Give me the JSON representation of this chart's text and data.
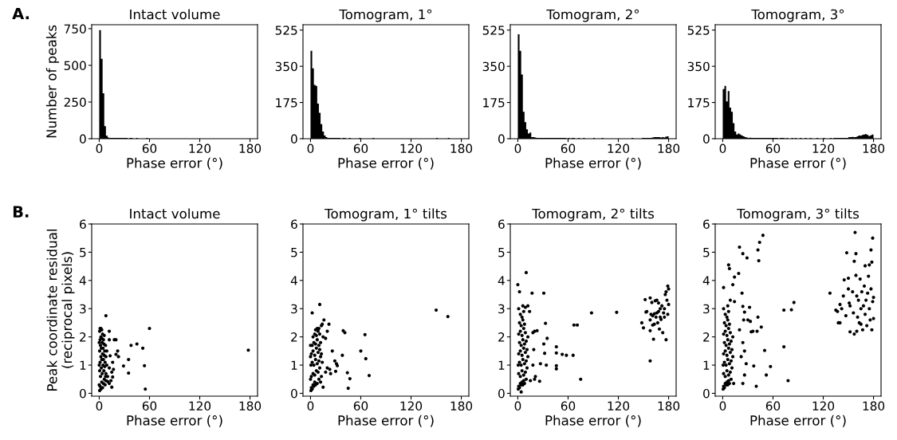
{
  "chart_data": [
    {
      "type": "histogram",
      "title": "Intact volume",
      "xlabel": "Phase error (°)",
      "ylabel": "Number of peaks",
      "annotations": [
        "A."
      ],
      "color": "#000000",
      "bins": [
        0,
        2,
        4,
        6,
        8,
        10,
        12,
        14,
        16,
        18,
        20,
        22,
        24,
        26,
        28,
        30,
        32,
        34,
        36,
        38,
        40,
        42,
        44,
        46,
        48,
        50,
        52,
        54,
        56,
        58,
        60,
        62,
        64,
        66,
        68,
        70,
        72,
        74,
        76,
        78,
        80,
        82,
        84,
        86,
        88,
        90,
        92,
        94,
        96,
        98,
        100,
        102,
        104,
        106,
        108,
        110,
        112,
        114,
        116,
        118,
        120,
        122,
        124,
        126,
        128,
        130,
        132,
        134,
        136,
        138,
        140,
        142,
        144,
        146,
        148,
        150,
        152,
        154,
        156,
        158,
        160,
        162,
        164,
        166,
        168,
        170,
        172,
        174,
        176,
        178,
        180
      ],
      "values": [
        740,
        545,
        310,
        85,
        20,
        8,
        6,
        6,
        6,
        6,
        6,
        6,
        6,
        6,
        6,
        6,
        6,
        0,
        6,
        6,
        0,
        0,
        6,
        0,
        0,
        0,
        0,
        0,
        6,
        0,
        0,
        0,
        0,
        0,
        0,
        0,
        0,
        0,
        0,
        0,
        0,
        0,
        0,
        0,
        0,
        0,
        0,
        0,
        0,
        0,
        0,
        0,
        0,
        0,
        0,
        0,
        0,
        0,
        0,
        0,
        0,
        0,
        0,
        0,
        0,
        0,
        0,
        0,
        0,
        0,
        0,
        0,
        0,
        0,
        0,
        0,
        0,
        0,
        0,
        0,
        0,
        0,
        0,
        0,
        0,
        0,
        0,
        0,
        0,
        0
      ],
      "xlim": [
        -9,
        189
      ],
      "xticks": [
        0,
        60,
        120,
        180
      ],
      "ylim": [
        0,
        777
      ],
      "yticks": [
        0,
        250,
        500,
        750
      ]
    },
    {
      "type": "histogram",
      "title": "Tomogram, 1°",
      "xlabel": "Phase error (°)",
      "color": "#000000",
      "bins": [
        0,
        2,
        4,
        6,
        8,
        10,
        12,
        14,
        16,
        18,
        20,
        22,
        24,
        26,
        28,
        30,
        32,
        34,
        36,
        38,
        40,
        42,
        44,
        46,
        48,
        50,
        52,
        54,
        56,
        58,
        60,
        62,
        64,
        66,
        68,
        70,
        72,
        74,
        76,
        78,
        80,
        82,
        84,
        86,
        88,
        90,
        92,
        94,
        96,
        98,
        100,
        102,
        104,
        106,
        108,
        110,
        112,
        114,
        116,
        118,
        120,
        122,
        124,
        126,
        128,
        130,
        132,
        134,
        136,
        138,
        140,
        142,
        144,
        146,
        148,
        150,
        152,
        154,
        156,
        158,
        160,
        162,
        164,
        166,
        168,
        170,
        172,
        174,
        176,
        178,
        180
      ],
      "values": [
        425,
        340,
        260,
        255,
        170,
        125,
        70,
        35,
        15,
        8,
        4,
        4,
        4,
        4,
        4,
        4,
        4,
        4,
        0,
        4,
        4,
        0,
        0,
        4,
        0,
        0,
        0,
        0,
        0,
        4,
        0,
        0,
        0,
        0,
        0,
        0,
        0,
        4,
        0,
        0,
        0,
        0,
        0,
        0,
        0,
        0,
        0,
        0,
        0,
        0,
        0,
        0,
        0,
        0,
        0,
        0,
        0,
        0,
        0,
        0,
        0,
        0,
        0,
        0,
        0,
        0,
        0,
        0,
        0,
        0,
        0,
        0,
        0,
        0,
        0,
        4,
        0,
        0,
        0,
        0,
        0,
        0,
        4,
        0,
        0,
        0,
        0,
        0,
        0,
        0
      ],
      "xlim": [
        -9,
        189
      ],
      "xticks": [
        0,
        60,
        120,
        180
      ],
      "ylim": [
        0,
        551
      ],
      "yticks": [
        0,
        175,
        350,
        525
      ]
    },
    {
      "type": "histogram",
      "title": "Tomogram, 2°",
      "xlabel": "Phase error (°)",
      "color": "#000000",
      "bins": [
        0,
        2,
        4,
        6,
        8,
        10,
        12,
        14,
        16,
        18,
        20,
        22,
        24,
        26,
        28,
        30,
        32,
        34,
        36,
        38,
        40,
        42,
        44,
        46,
        48,
        50,
        52,
        54,
        56,
        58,
        60,
        62,
        64,
        66,
        68,
        70,
        72,
        74,
        76,
        78,
        80,
        82,
        84,
        86,
        88,
        90,
        92,
        94,
        96,
        98,
        100,
        102,
        104,
        106,
        108,
        110,
        112,
        114,
        116,
        118,
        120,
        122,
        124,
        126,
        128,
        130,
        132,
        134,
        136,
        138,
        140,
        142,
        144,
        146,
        148,
        150,
        152,
        154,
        156,
        158,
        160,
        162,
        164,
        166,
        168,
        170,
        172,
        174,
        176,
        178,
        180
      ],
      "values": [
        505,
        425,
        310,
        130,
        80,
        45,
        25,
        30,
        8,
        8,
        6,
        4,
        4,
        4,
        4,
        4,
        4,
        4,
        4,
        4,
        4,
        4,
        4,
        4,
        4,
        4,
        4,
        4,
        4,
        0,
        4,
        0,
        4,
        4,
        0,
        0,
        4,
        0,
        0,
        4,
        0,
        0,
        0,
        0,
        0,
        4,
        0,
        0,
        0,
        0,
        4,
        0,
        0,
        0,
        0,
        0,
        0,
        0,
        0,
        0,
        0,
        0,
        0,
        0,
        0,
        0,
        0,
        0,
        4,
        0,
        0,
        0,
        0,
        0,
        4,
        4,
        4,
        4,
        4,
        4,
        6,
        8,
        8,
        8,
        8,
        6,
        8,
        6,
        10,
        12
      ],
      "xlim": [
        -9,
        189
      ],
      "xticks": [
        0,
        60,
        120,
        180
      ],
      "ylim": [
        0,
        551
      ],
      "yticks": [
        0,
        175,
        350,
        525
      ]
    },
    {
      "type": "histogram",
      "title": "Tomogram, 3°",
      "xlabel": "Phase error (°)",
      "color": "#000000",
      "bins": [
        0,
        2,
        4,
        6,
        8,
        10,
        12,
        14,
        16,
        18,
        20,
        22,
        24,
        26,
        28,
        30,
        32,
        34,
        36,
        38,
        40,
        42,
        44,
        46,
        48,
        50,
        52,
        54,
        56,
        58,
        60,
        62,
        64,
        66,
        68,
        70,
        72,
        74,
        76,
        78,
        80,
        82,
        84,
        86,
        88,
        90,
        92,
        94,
        96,
        98,
        100,
        102,
        104,
        106,
        108,
        110,
        112,
        114,
        116,
        118,
        120,
        122,
        124,
        126,
        128,
        130,
        132,
        134,
        136,
        138,
        140,
        142,
        144,
        146,
        148,
        150,
        152,
        154,
        156,
        158,
        160,
        162,
        164,
        166,
        168,
        170,
        172,
        174,
        176,
        178,
        180
      ],
      "values": [
        240,
        255,
        180,
        230,
        150,
        130,
        75,
        35,
        20,
        25,
        20,
        15,
        12,
        8,
        6,
        4,
        5,
        4,
        4,
        4,
        4,
        4,
        4,
        4,
        4,
        4,
        4,
        4,
        4,
        4,
        4,
        4,
        4,
        0,
        4,
        4,
        4,
        0,
        4,
        0,
        0,
        4,
        0,
        4,
        0,
        0,
        4,
        0,
        0,
        4,
        0,
        0,
        4,
        0,
        0,
        0,
        4,
        0,
        0,
        0,
        4,
        0,
        0,
        0,
        4,
        0,
        4,
        4,
        4,
        4,
        4,
        4,
        4,
        4,
        4,
        8,
        8,
        9,
        8,
        8,
        12,
        15,
        14,
        18,
        20,
        22,
        18,
        13,
        16,
        20
      ],
      "xlim": [
        -9,
        189
      ],
      "xticks": [
        0,
        60,
        120,
        180
      ],
      "ylim": [
        0,
        551
      ],
      "yticks": [
        0,
        175,
        350,
        525
      ]
    },
    {
      "type": "scatter",
      "title": "Intact volume",
      "xlabel": "Phase error (°)",
      "ylabel": "Peak coordinate residual\n(reciprocal pixels)",
      "annotations": [
        "B."
      ],
      "color": "#000000",
      "marker": "circle",
      "x": [
        0.5,
        1,
        2,
        3,
        4,
        5,
        6,
        7,
        1.5,
        0.5,
        2.5,
        3.5,
        4.5,
        5.5,
        6.5,
        7.5,
        1,
        2,
        3,
        4,
        5,
        6,
        7,
        8,
        0.5,
        1.5,
        2.5,
        3.5,
        4.5,
        5.5,
        6.5,
        7.5,
        1,
        2,
        3,
        4,
        5,
        6,
        1,
        2,
        3,
        0.5,
        8,
        9,
        9,
        8,
        10,
        0,
        0,
        0,
        8,
        12,
        60,
        38,
        45,
        52,
        35,
        35,
        29,
        54,
        55,
        22,
        23,
        20,
        18,
        20,
        12,
        13,
        16,
        17,
        15,
        16,
        15,
        12,
        12,
        14,
        10,
        178
      ],
      "values": [
        0.1,
        0.25,
        0.15,
        0.4,
        0.2,
        0.35,
        0.5,
        0.3,
        0.6,
        0.8,
        0.9,
        0.7,
        1.0,
        0.8,
        0.95,
        0.6,
        1.1,
        1.3,
        1.2,
        1.4,
        1.2,
        1.35,
        1.1,
        1.3,
        1.5,
        1.7,
        1.6,
        1.8,
        1.6,
        1.75,
        1.5,
        1.7,
        1.9,
        2.0,
        1.95,
        2.1,
        1.9,
        2.05,
        2.3,
        2.3,
        2.25,
        2.2,
        0.7,
        1.0,
        1.5,
        0.45,
        0.6,
        0.3,
        1.0,
        1.8,
        2.75,
        2.2,
        2.3,
        1.7,
        1.75,
        1.6,
        1.2,
        0.72,
        0.97,
        0.98,
        0.15,
        1.5,
        1.3,
        1.38,
        1.9,
        1.9,
        1.9,
        1.33,
        1.1,
        0.85,
        0.75,
        0.58,
        0.22,
        0.35,
        0.9,
        0.45,
        0.42,
        1.53
      ],
      "xlim": [
        -9,
        189
      ],
      "xticks": [
        0,
        60,
        120,
        180
      ],
      "ylim": [
        -0.1,
        6
      ],
      "yticks": [
        0,
        1,
        2,
        3,
        4,
        5,
        6
      ]
    },
    {
      "type": "scatter",
      "title": "Tomogram, 1° tilts",
      "xlabel": "Phase error (°)",
      "color": "#000000",
      "marker": "circle",
      "x": [
        0.5,
        1,
        2,
        3,
        4,
        5,
        6,
        8,
        10,
        12,
        1,
        3,
        5,
        7,
        9,
        11,
        13,
        0.5,
        2,
        4,
        6,
        8,
        10,
        12,
        14,
        1,
        3,
        5,
        7,
        9,
        11,
        13,
        2,
        4,
        6,
        8,
        10,
        12,
        3,
        5,
        7,
        9,
        11,
        6,
        8,
        10,
        0,
        0,
        0,
        13,
        2,
        11,
        16,
        22,
        14,
        20,
        18,
        15,
        39,
        41,
        65,
        26,
        38,
        60,
        66,
        29,
        31,
        32,
        30,
        24,
        23,
        20,
        18,
        44,
        47,
        45,
        70,
        15,
        150,
        164
      ],
      "values": [
        0.1,
        0.2,
        0.15,
        0.3,
        0.25,
        0.4,
        0.3,
        0.35,
        0.5,
        0.4,
        0.6,
        0.7,
        0.65,
        0.8,
        0.75,
        0.9,
        0.6,
        1.0,
        1.1,
        1.0,
        1.2,
        1.05,
        1.15,
        1.3,
        1.1,
        1.4,
        1.5,
        1.35,
        1.6,
        1.45,
        1.55,
        1.4,
        1.7,
        1.8,
        1.75,
        1.9,
        1.7,
        1.8,
        2.0,
        2.1,
        2.05,
        2.2,
        2.1,
        2.25,
        2.3,
        2.3,
        0.5,
        1.3,
        1.7,
        2.4,
        2.85,
        3.15,
        2.6,
        2.45,
        2.45,
        2.2,
        1.95,
        2.0,
        2.22,
        2.15,
        2.08,
        1.5,
        1.35,
        1.5,
        1.23,
        1.15,
        1.05,
        0.98,
        0.78,
        0.7,
        0.85,
        0.9,
        0.75,
        0.73,
        0.52,
        0.18,
        0.63,
        0.22,
        2.95,
        2.72
      ],
      "xlim": [
        -9,
        189
      ],
      "xticks": [
        0,
        60,
        120,
        180
      ],
      "ylim": [
        -0.1,
        6
      ],
      "yticks": [
        0,
        1,
        2,
        3,
        4,
        5,
        6
      ]
    },
    {
      "type": "scatter",
      "title": "Tomogram, 2° tilts",
      "xlabel": "Phase error (°)",
      "color": "#000000",
      "marker": "circle",
      "x": [
        0.5,
        1,
        2,
        3,
        4,
        5,
        6,
        7,
        8,
        10,
        1,
        3,
        5,
        7,
        9,
        11,
        0.5,
        2,
        4,
        6,
        8,
        10,
        12,
        1,
        3,
        5,
        7,
        9,
        11,
        2,
        4,
        6,
        8,
        10,
        12,
        1,
        3,
        5,
        7,
        9,
        2,
        4,
        6,
        8,
        3,
        5,
        7,
        1,
        6,
        9,
        0,
        10,
        2,
        17,
        31,
        12,
        14,
        33,
        20,
        23,
        18,
        35,
        31,
        46,
        19,
        32,
        46,
        53,
        58,
        66,
        67,
        71,
        88,
        118,
        27,
        34,
        46,
        46,
        75,
        26,
        20,
        15,
        4,
        18,
        21,
        148,
        150,
        152,
        153,
        154,
        158,
        158,
        158,
        158,
        159,
        160,
        161,
        162,
        163,
        164,
        165,
        166,
        167,
        168,
        169,
        170,
        171,
        172,
        173,
        174,
        175,
        176,
        177,
        178,
        179,
        180,
        180,
        179,
        177,
        175,
        170,
        166,
        163,
        161,
        168
      ],
      "values": [
        0.15,
        0.25,
        0.2,
        0.35,
        0.3,
        0.4,
        0.3,
        0.45,
        0.35,
        0.5,
        0.7,
        0.6,
        0.8,
        0.65,
        0.75,
        0.9,
        1.0,
        1.1,
        1.0,
        1.2,
        1.05,
        1.15,
        1.3,
        1.4,
        1.5,
        1.35,
        1.6,
        1.45,
        1.55,
        1.8,
        1.7,
        1.9,
        1.75,
        1.85,
        2.0,
        2.1,
        2.2,
        2.05,
        2.3,
        2.15,
        2.5,
        2.4,
        2.6,
        2.45,
        2.8,
        2.7,
        2.9,
        3.0,
        3.1,
        3.05,
        3.85,
        4.28,
        3.6,
        3.55,
        3.55,
        3.1,
        2.9,
        2.48,
        2.2,
        2.22,
        2.15,
        1.95,
        1.75,
        1.65,
        1.55,
        1.42,
        1.43,
        1.38,
        1.35,
        1.35,
        2.42,
        2.42,
        2.85,
        2.87,
        1.05,
        1.0,
        0.98,
        0.87,
        0.5,
        0.43,
        0.5,
        0.45,
        0.05,
        1.0,
        0.6,
        2.5,
        2.32,
        3.32,
        2.88,
        2.9,
        3.38,
        2.6,
        2.22,
        1.15,
        2.8,
        3.22,
        2.42,
        1.92,
        2.82,
        3.28,
        2.7,
        3.3,
        2.5,
        2.9,
        2.28,
        3.0,
        2.62,
        3.1,
        2.15,
        2.85,
        3.0,
        3.5,
        1.9,
        3.3,
        3.8,
        3.7,
        3.15,
        2.8,
        3.6,
        2.7,
        2.7,
        2.85,
        2.45,
        2.75,
        3.2
      ],
      "xlim": [
        -9,
        189
      ],
      "xticks": [
        0,
        60,
        120,
        180
      ],
      "ylim": [
        -0.1,
        6
      ],
      "yticks": [
        0,
        1,
        2,
        3,
        4,
        5,
        6
      ]
    },
    {
      "type": "scatter",
      "title": "Tomogram, 3° tilts",
      "xlabel": "Phase error (°)",
      "color": "#000000",
      "marker": "circle",
      "x": [
        0.5,
        1,
        2,
        3,
        4,
        5,
        6,
        7,
        8,
        10,
        1,
        3,
        5,
        7,
        9,
        11,
        0.5,
        2,
        4,
        6,
        8,
        10,
        12,
        1,
        3,
        5,
        7,
        9,
        11,
        2,
        4,
        6,
        8,
        10,
        12,
        1,
        3,
        5,
        7,
        9,
        2,
        4,
        6,
        8,
        3,
        5,
        7,
        1,
        6,
        9,
        7,
        8,
        20,
        24,
        29,
        42,
        44,
        48,
        43,
        19,
        14,
        12,
        23,
        1,
        14,
        24,
        32,
        26,
        30,
        33,
        42,
        46,
        41,
        34,
        36,
        25,
        20,
        24,
        26,
        22,
        28,
        37,
        50,
        57,
        52,
        40,
        24,
        26,
        73,
        82,
        85,
        73,
        78,
        13,
        128,
        135,
        137,
        138,
        140,
        140,
        142,
        144,
        145,
        147,
        148,
        150,
        150,
        151,
        152,
        152,
        155,
        156,
        157,
        157,
        158,
        159,
        159,
        160,
        161,
        162,
        163,
        164,
        165,
        166,
        167,
        168,
        169,
        170,
        170,
        171,
        172,
        173,
        174,
        175,
        175,
        176,
        177,
        177,
        178,
        178,
        179,
        179,
        180,
        180,
        165,
        160
      ],
      "values": [
        0.15,
        0.25,
        0.2,
        0.35,
        0.3,
        0.4,
        0.3,
        0.45,
        0.35,
        0.5,
        0.7,
        0.6,
        0.8,
        0.65,
        0.75,
        0.9,
        1.0,
        1.1,
        1.0,
        1.2,
        1.05,
        1.15,
        1.3,
        1.4,
        1.5,
        1.35,
        1.6,
        1.45,
        1.55,
        1.8,
        1.7,
        1.9,
        1.75,
        1.85,
        2.0,
        2.1,
        2.2,
        2.05,
        2.3,
        2.15,
        2.5,
        2.4,
        2.6,
        2.45,
        2.8,
        2.7,
        2.9,
        3.0,
        3.1,
        3.3,
        4.55,
        4.42,
        5.18,
        4.95,
        4.8,
        5.08,
        5.35,
        5.6,
        4.7,
        4.25,
        4.12,
        3.85,
        3.55,
        3.75,
        3.25,
        3.08,
        3.05,
        2.88,
        2.6,
        2.55,
        2.7,
        2.35,
        2.2,
        2.18,
        2.2,
        2.6,
        2.25,
        1.8,
        1.5,
        1.3,
        1.05,
        0.97,
        1.52,
        0.95,
        0.65,
        0.25,
        0.35,
        0.65,
        2.95,
        2.96,
        3.22,
        1.65,
        0.45,
        0.35,
        3.55,
        2.95,
        2.9,
        2.5,
        2.5,
        3.15,
        3.0,
        3.45,
        4.02,
        2.75,
        4.98,
        4.08,
        3.7,
        3.2,
        3.1,
        2.18,
        3.6,
        2.85,
        2.1,
        4.68,
        5.7,
        4.18,
        4.95,
        3.45,
        2.7,
        3.3,
        2.5,
        4.05,
        3.0,
        3.6,
        2.25,
        3.1,
        3.8,
        4.52,
        2.8,
        3.3,
        2.4,
        3.55,
        4.15,
        3.0,
        4.55,
        2.6,
        3.7,
        5.08,
        4.65,
        2.25,
        5.5,
        3.25,
        2.65,
        3.4,
        2.45,
        2.2
      ],
      "xlim": [
        -9,
        189
      ],
      "xticks": [
        0,
        60,
        120,
        180
      ],
      "ylim": [
        -0.1,
        6
      ],
      "yticks": [
        0,
        1,
        2,
        3,
        4,
        5,
        6
      ]
    }
  ]
}
